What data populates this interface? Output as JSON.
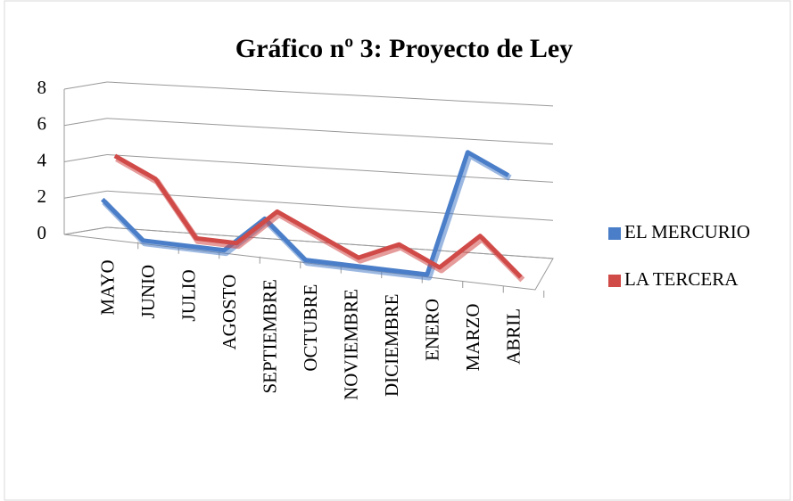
{
  "chart_data": {
    "type": "line3d",
    "title": "Gráfico nº 3: Proyecto de Ley",
    "categories": [
      "MAYO",
      "JUNIO",
      "JULIO",
      "AGOSTO",
      "SEPTIEMBRE",
      "OCTUBRE",
      "NOVIEMBRE",
      "DICIEMBRE",
      "ENERO",
      "MARZO",
      "ABRIL"
    ],
    "series": [
      {
        "name": "EL MERCURIO",
        "color": "#4a7ec8",
        "values": [
          2,
          0,
          0,
          0,
          2,
          0,
          0,
          0,
          0,
          7,
          6
        ]
      },
      {
        "name": "LA TERCERA",
        "color": "#d04a48",
        "values": [
          4,
          3,
          0,
          0,
          2,
          1,
          0,
          1,
          0,
          2,
          0
        ]
      }
    ],
    "ylim": [
      0,
      8
    ],
    "yticks": [
      0,
      2,
      4,
      6,
      8
    ],
    "grid": true,
    "legend": "right"
  }
}
